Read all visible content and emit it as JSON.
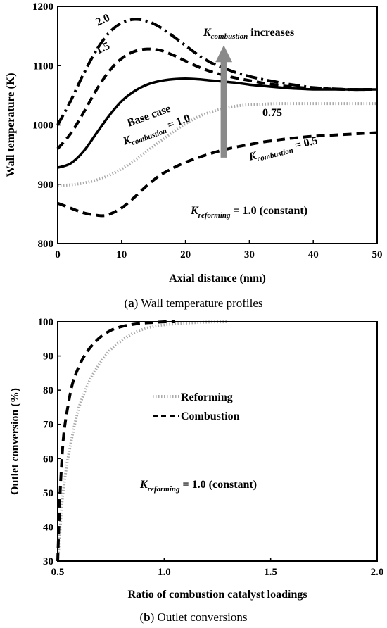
{
  "chart_data": [
    {
      "type": "line",
      "caption_letter": "a",
      "caption_rest": " Wall temperature profiles",
      "xlabel": "Axial distance (mm)",
      "ylabel": "Wall temperature (K)",
      "xlim": [
        0,
        50
      ],
      "ylim": [
        800,
        1200
      ],
      "xticks": [
        "0",
        "10",
        "20",
        "30",
        "40",
        "50"
      ],
      "yticks": [
        "800",
        "900",
        "1000",
        "1100",
        "1200"
      ],
      "grid": false,
      "series": [
        {
          "name": "2.0",
          "style": "dashdot",
          "x": [
            0,
            2,
            4,
            6,
            8,
            10,
            12,
            14,
            16,
            18,
            20,
            22,
            24,
            26,
            28,
            30,
            32,
            34,
            36,
            38,
            40,
            45,
            50
          ],
          "y": [
            1000,
            1040,
            1085,
            1125,
            1155,
            1172,
            1178,
            1175,
            1165,
            1150,
            1134,
            1118,
            1105,
            1096,
            1088,
            1082,
            1077,
            1073,
            1069,
            1066,
            1063,
            1060,
            1060
          ]
        },
        {
          "name": "1.5",
          "style": "dash",
          "x": [
            0,
            2,
            4,
            6,
            8,
            10,
            12,
            14,
            16,
            18,
            20,
            22,
            24,
            26,
            28,
            30,
            32,
            34,
            36,
            38,
            40,
            45,
            50
          ],
          "y": [
            960,
            985,
            1020,
            1058,
            1090,
            1112,
            1124,
            1128,
            1126,
            1118,
            1108,
            1098,
            1090,
            1084,
            1079,
            1075,
            1071,
            1068,
            1065,
            1063,
            1062,
            1060,
            1060
          ]
        },
        {
          "name": "Base case K_combustion = 1.0",
          "style": "solid",
          "x": [
            0,
            2,
            4,
            6,
            8,
            10,
            12,
            14,
            16,
            18,
            20,
            22,
            24,
            26,
            28,
            30,
            32,
            34,
            36,
            38,
            40,
            45,
            50
          ],
          "y": [
            928,
            935,
            955,
            985,
            1015,
            1040,
            1057,
            1068,
            1074,
            1077,
            1078,
            1077,
            1075,
            1073,
            1071,
            1068,
            1066,
            1064,
            1062,
            1061,
            1060,
            1060,
            1060
          ]
        },
        {
          "name": "0.75",
          "style": "dotted",
          "x": [
            0,
            2,
            4,
            6,
            8,
            10,
            12,
            14,
            16,
            18,
            20,
            22,
            24,
            26,
            28,
            30,
            32,
            34,
            36,
            38,
            40,
            45,
            50
          ],
          "y": [
            898,
            899,
            902,
            907,
            915,
            926,
            940,
            956,
            972,
            988,
            1002,
            1014,
            1022,
            1028,
            1032,
            1034,
            1035,
            1036,
            1036,
            1036,
            1036,
            1036,
            1036
          ]
        },
        {
          "name": "K_combustion = 0.5",
          "style": "dash",
          "x": [
            0,
            2,
            4,
            6,
            7,
            8,
            10,
            12,
            14,
            16,
            18,
            20,
            22,
            24,
            26,
            28,
            30,
            32,
            34,
            36,
            38,
            40,
            45,
            50
          ],
          "y": [
            868,
            860,
            852,
            848,
            847,
            849,
            860,
            878,
            898,
            915,
            927,
            937,
            945,
            952,
            958,
            963,
            967,
            971,
            974,
            977,
            979,
            981,
            984,
            987
          ]
        }
      ],
      "annotations": {
        "arrow_text_main": "K",
        "arrow_text_sub": "combustion",
        "arrow_text_rest": " increases",
        "label_20": "2.0",
        "label_15": "1.5",
        "label_base": "Base case",
        "label_k10_main": "K",
        "label_k10_sub": "combustion",
        "label_k10_rest": " = 1.0",
        "label_075": "0.75",
        "label_k05_main": "K",
        "label_k05_sub": "combustion",
        "label_k05_rest": " = 0.5",
        "kref_main": "K",
        "kref_sub": "reforming",
        "kref_rest": " = 1.0 (constant)"
      },
      "arrow": {
        "x": 26,
        "y_from": 945,
        "y_to": 1125,
        "color": "#8a8a8a"
      }
    },
    {
      "type": "line",
      "caption_letter": "b",
      "caption_rest": " Outlet conversions",
      "xlabel": "Ratio of combustion catalyst loadings",
      "ylabel": "Outlet conversion (%)",
      "xlim": [
        0.5,
        2.0
      ],
      "ylim": [
        30,
        100
      ],
      "xticks": [
        "0.5",
        "1.0",
        "1.5",
        "2.0"
      ],
      "yticks": [
        "30",
        "40",
        "50",
        "60",
        "70",
        "80",
        "90",
        "100"
      ],
      "grid": false,
      "legend_position": "center",
      "series": [
        {
          "name": "Reforming",
          "style": "dotted",
          "x": [
            0.5,
            0.51,
            0.52,
            0.54,
            0.56,
            0.58,
            0.6,
            0.63,
            0.66,
            0.7,
            0.75,
            0.8,
            0.85,
            0.9,
            0.95,
            1.0,
            1.1,
            1.2,
            1.3
          ],
          "y": [
            30,
            38,
            47,
            57,
            64,
            70,
            75,
            80,
            84,
            88,
            92,
            94.5,
            96.5,
            97.8,
            98.6,
            99.1,
            99.6,
            99.9,
            100
          ]
        },
        {
          "name": "Combustion",
          "style": "dash",
          "x": [
            0.5,
            0.51,
            0.52,
            0.53,
            0.55,
            0.57,
            0.6,
            0.63,
            0.66,
            0.7,
            0.75,
            0.8,
            0.85,
            0.9,
            0.95,
            1.0,
            1.05
          ],
          "y": [
            30,
            48,
            60,
            68,
            76,
            82,
            87,
            90.5,
            93,
            95.5,
            97.5,
            98.6,
            99.2,
            99.6,
            99.8,
            100,
            100
          ]
        }
      ],
      "annotations": {
        "kref_main": "K",
        "kref_sub": "reforming",
        "kref_rest": " = 1.0 (constant)"
      }
    }
  ]
}
